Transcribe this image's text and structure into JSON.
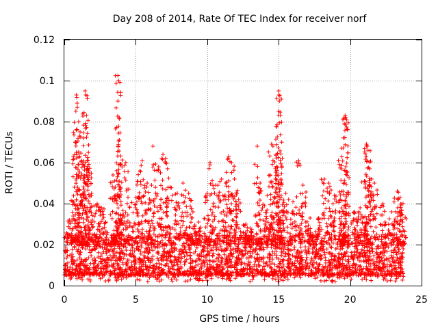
{
  "chart_data": {
    "type": "scatter",
    "title": "Day 208 of 2014, Rate Of TEC Index for receiver norf",
    "xlabel": "GPS time / hours",
    "ylabel": "ROTI / TECUs",
    "xlim": [
      0,
      25
    ],
    "ylim": [
      0,
      0.12
    ],
    "xticks": [
      0,
      5,
      10,
      15,
      20,
      25
    ],
    "xtick_labels": [
      "0",
      "5",
      "10",
      "15",
      "20",
      "25"
    ],
    "yticks": [
      0,
      0.02,
      0.04,
      0.06,
      0.08,
      0.1,
      0.12
    ],
    "ytick_labels": [
      "0",
      "0.02",
      "0.04",
      "0.06",
      "0.08",
      "0.1",
      "0.12"
    ],
    "grid": true,
    "marker": "+",
    "marker_color": "#ff0000",
    "x_range_of_data": [
      0,
      23.75
    ],
    "bulk_band": [
      0.005,
      0.025
    ],
    "peaks": [
      {
        "x": 0.35,
        "y": 0.032
      },
      {
        "x": 0.7,
        "y": 0.048
      },
      {
        "x": 0.8,
        "y": 0.07
      },
      {
        "x": 0.85,
        "y": 0.093
      },
      {
        "x": 0.9,
        "y": 0.089
      },
      {
        "x": 1.0,
        "y": 0.08
      },
      {
        "x": 1.1,
        "y": 0.075
      },
      {
        "x": 1.2,
        "y": 0.061
      },
      {
        "x": 1.35,
        "y": 0.072
      },
      {
        "x": 1.45,
        "y": 0.095
      },
      {
        "x": 1.5,
        "y": 0.093
      },
      {
        "x": 1.55,
        "y": 0.083
      },
      {
        "x": 1.6,
        "y": 0.061
      },
      {
        "x": 1.7,
        "y": 0.056
      },
      {
        "x": 1.9,
        "y": 0.045
      },
      {
        "x": 2.3,
        "y": 0.04
      },
      {
        "x": 2.6,
        "y": 0.038
      },
      {
        "x": 2.9,
        "y": 0.031
      },
      {
        "x": 3.4,
        "y": 0.054
      },
      {
        "x": 3.5,
        "y": 0.051
      },
      {
        "x": 3.75,
        "y": 0.1025
      },
      {
        "x": 3.8,
        "y": 0.1
      },
      {
        "x": 3.75,
        "y": 0.09
      },
      {
        "x": 3.85,
        "y": 0.071
      },
      {
        "x": 3.9,
        "y": 0.059
      },
      {
        "x": 4.3,
        "y": 0.06
      },
      {
        "x": 4.5,
        "y": 0.047
      },
      {
        "x": 5.0,
        "y": 0.043
      },
      {
        "x": 5.3,
        "y": 0.056
      },
      {
        "x": 5.45,
        "y": 0.061
      },
      {
        "x": 5.8,
        "y": 0.05
      },
      {
        "x": 6.1,
        "y": 0.049
      },
      {
        "x": 6.2,
        "y": 0.068
      },
      {
        "x": 6.6,
        "y": 0.058
      },
      {
        "x": 6.9,
        "y": 0.064
      },
      {
        "x": 7.1,
        "y": 0.062
      },
      {
        "x": 7.4,
        "y": 0.048
      },
      {
        "x": 7.9,
        "y": 0.045
      },
      {
        "x": 8.3,
        "y": 0.05
      },
      {
        "x": 8.7,
        "y": 0.045
      },
      {
        "x": 9.0,
        "y": 0.036
      },
      {
        "x": 9.4,
        "y": 0.031
      },
      {
        "x": 10.0,
        "y": 0.045
      },
      {
        "x": 10.2,
        "y": 0.06
      },
      {
        "x": 10.6,
        "y": 0.049
      },
      {
        "x": 11.0,
        "y": 0.052
      },
      {
        "x": 11.3,
        "y": 0.05
      },
      {
        "x": 11.5,
        "y": 0.063
      },
      {
        "x": 11.7,
        "y": 0.06
      },
      {
        "x": 11.9,
        "y": 0.052
      },
      {
        "x": 12.2,
        "y": 0.042
      },
      {
        "x": 12.7,
        "y": 0.03
      },
      {
        "x": 13.0,
        "y": 0.028
      },
      {
        "x": 13.5,
        "y": 0.068
      },
      {
        "x": 13.7,
        "y": 0.05
      },
      {
        "x": 14.0,
        "y": 0.039
      },
      {
        "x": 14.4,
        "y": 0.054
      },
      {
        "x": 14.5,
        "y": 0.069
      },
      {
        "x": 14.6,
        "y": 0.068
      },
      {
        "x": 14.8,
        "y": 0.052
      },
      {
        "x": 15.0,
        "y": 0.095
      },
      {
        "x": 15.02,
        "y": 0.093
      },
      {
        "x": 15.05,
        "y": 0.09
      },
      {
        "x": 15.0,
        "y": 0.085
      },
      {
        "x": 15.2,
        "y": 0.05
      },
      {
        "x": 15.5,
        "y": 0.045
      },
      {
        "x": 16.0,
        "y": 0.041
      },
      {
        "x": 16.4,
        "y": 0.061
      },
      {
        "x": 16.7,
        "y": 0.049
      },
      {
        "x": 17.2,
        "y": 0.033
      },
      {
        "x": 17.8,
        "y": 0.033
      },
      {
        "x": 18.2,
        "y": 0.052
      },
      {
        "x": 18.5,
        "y": 0.05
      },
      {
        "x": 18.9,
        "y": 0.044
      },
      {
        "x": 19.4,
        "y": 0.067
      },
      {
        "x": 19.5,
        "y": 0.046
      },
      {
        "x": 19.65,
        "y": 0.083
      },
      {
        "x": 19.7,
        "y": 0.082
      },
      {
        "x": 19.6,
        "y": 0.079
      },
      {
        "x": 19.7,
        "y": 0.058
      },
      {
        "x": 20.3,
        "y": 0.036
      },
      {
        "x": 20.7,
        "y": 0.038
      },
      {
        "x": 21.0,
        "y": 0.051
      },
      {
        "x": 21.15,
        "y": 0.069
      },
      {
        "x": 21.2,
        "y": 0.068
      },
      {
        "x": 21.25,
        "y": 0.066
      },
      {
        "x": 21.5,
        "y": 0.052
      },
      {
        "x": 21.7,
        "y": 0.05
      },
      {
        "x": 22.3,
        "y": 0.04
      },
      {
        "x": 22.9,
        "y": 0.036
      },
      {
        "x": 23.3,
        "y": 0.046
      },
      {
        "x": 23.5,
        "y": 0.043
      },
      {
        "x": 23.7,
        "y": 0.04
      }
    ]
  }
}
